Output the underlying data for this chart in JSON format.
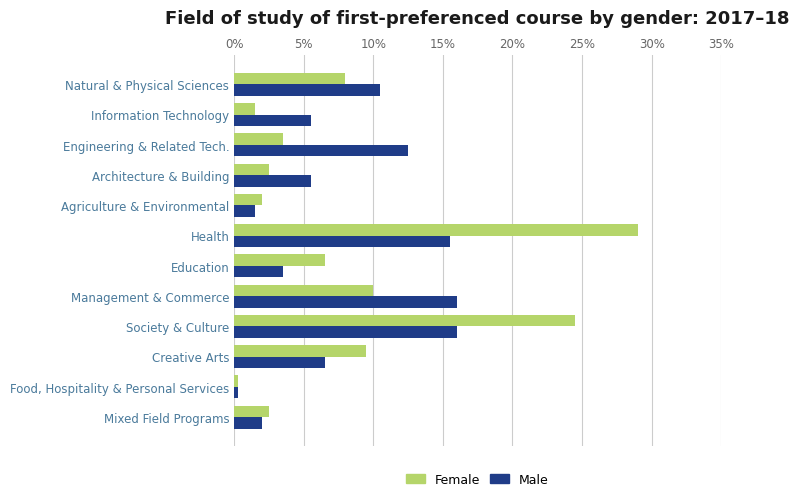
{
  "title": "Field of study of first-preferenced course by gender: 2017–18",
  "categories": [
    "Natural & Physical Sciences",
    "Information Technology",
    "Engineering & Related Tech.",
    "Architecture & Building",
    "Agriculture & Environmental",
    "Health",
    "Education",
    "Management & Commerce",
    "Society & Culture",
    "Creative Arts",
    "Food, Hospitality & Personal Services",
    "Mixed Field Programs"
  ],
  "female": [
    8.0,
    1.5,
    3.5,
    2.5,
    2.0,
    29.0,
    6.5,
    10.0,
    24.5,
    9.5,
    0.3,
    2.5
  ],
  "male": [
    10.5,
    5.5,
    12.5,
    5.5,
    1.5,
    15.5,
    3.5,
    16.0,
    16.0,
    6.5,
    0.3,
    2.0
  ],
  "female_color": "#b5d56a",
  "male_color": "#1f3c88",
  "xlabel_color": "#666666",
  "ylabel_color": "#4a7a9b",
  "title_color": "#1a1a1a",
  "grid_color": "#cccccc",
  "background_color": "#ffffff",
  "xlim": [
    0,
    35
  ],
  "xticks": [
    0,
    5,
    10,
    15,
    20,
    25,
    30,
    35
  ],
  "bar_height": 0.38,
  "title_fontsize": 13,
  "label_fontsize": 8.5,
  "tick_fontsize": 8.5,
  "legend_fontsize": 9
}
